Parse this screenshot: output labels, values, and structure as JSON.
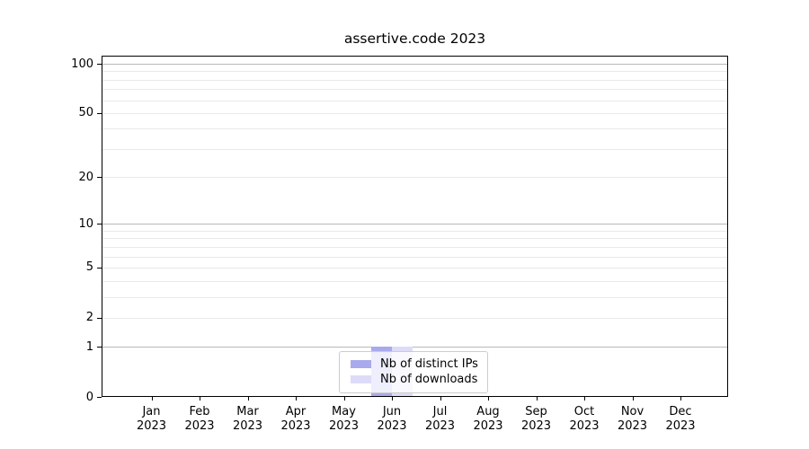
{
  "chart_data": {
    "type": "bar",
    "title": "assertive.code 2023",
    "categories": [
      "Jan 2023",
      "Feb 2023",
      "Mar 2023",
      "Apr 2023",
      "May 2023",
      "Jun 2023",
      "Jul 2023",
      "Aug 2023",
      "Sep 2023",
      "Oct 2023",
      "Nov 2023",
      "Dec 2023"
    ],
    "series": [
      {
        "name": "Nb of distinct IPs",
        "color": "#a9a9ee",
        "values": [
          0,
          0,
          0,
          0,
          0,
          1,
          0,
          0,
          0,
          0,
          0,
          0
        ]
      },
      {
        "name": "Nb of downloads",
        "color": "#dcdcf8",
        "values": [
          0,
          0,
          0,
          0,
          0,
          1,
          0,
          0,
          0,
          0,
          0,
          0
        ]
      }
    ],
    "xlabel": "",
    "ylabel": "",
    "y_axis": {
      "scale": "log1p",
      "ylim": [
        0,
        112
      ],
      "labeled_ticks": [
        0,
        1,
        2,
        5,
        10,
        20,
        50,
        100
      ],
      "major_gridlines": [
        1,
        10,
        100
      ],
      "minor_gridlines": [
        2,
        3,
        4,
        5,
        6,
        7,
        8,
        9,
        20,
        30,
        40,
        50,
        60,
        70,
        80,
        90
      ]
    },
    "grid": true,
    "legend": {
      "position": "inside-bottom-center",
      "entries": [
        "Nb of distinct IPs",
        "Nb of downloads"
      ]
    },
    "colors": {
      "major_grid": "#b9b9b9",
      "minor_grid": "#e9e9e9",
      "spine": "#000000",
      "text": "#000000",
      "legend_border": "#cccccc",
      "background": "#ffffff"
    }
  }
}
